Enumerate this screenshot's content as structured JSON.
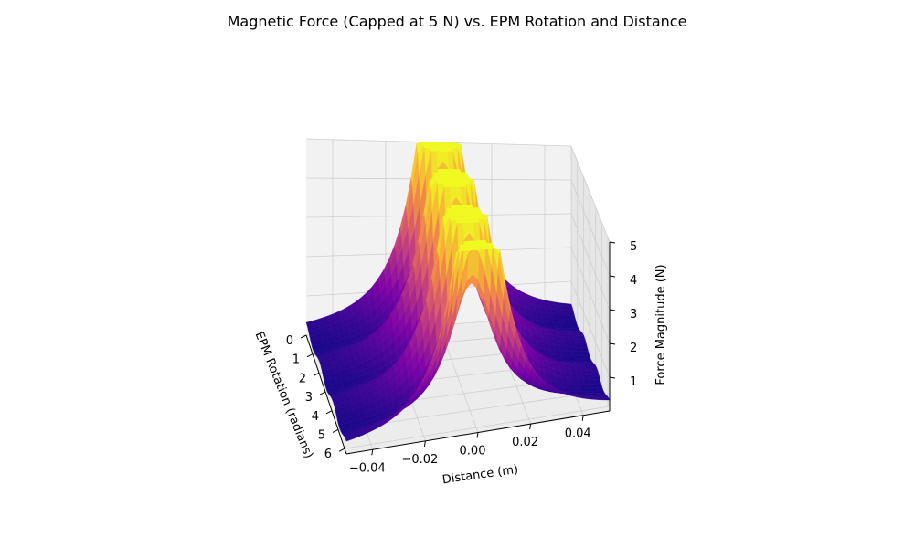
{
  "chart_data": {
    "type": "surface3d",
    "title": "Magnetic Force (Capped at 5 N) vs. EPM Rotation and Distance",
    "xlabel": "Distance (m)",
    "ylabel": "EPM Rotation (radians)",
    "zlabel": "Force Magnitude (N)",
    "x_ticks": [
      "−0.04",
      "−0.02",
      "0.00",
      "0.02",
      "0.04"
    ],
    "x_tick_values": [
      -0.04,
      -0.02,
      0.0,
      0.02,
      0.04
    ],
    "y_ticks": [
      "0",
      "1",
      "2",
      "3",
      "4",
      "5",
      "6"
    ],
    "y_tick_values": [
      0,
      1,
      2,
      3,
      4,
      5,
      6
    ],
    "z_ticks": [
      "1",
      "2",
      "3",
      "4",
      "5"
    ],
    "z_tick_values": [
      1,
      2,
      3,
      4,
      5
    ],
    "xlim": [
      -0.05,
      0.05
    ],
    "ylim": [
      0,
      6.283
    ],
    "zlim": [
      0,
      5
    ],
    "cap": 5,
    "colormap": "plasma",
    "grid": true,
    "peak_distance": 0.0,
    "peak_force": 5
  }
}
